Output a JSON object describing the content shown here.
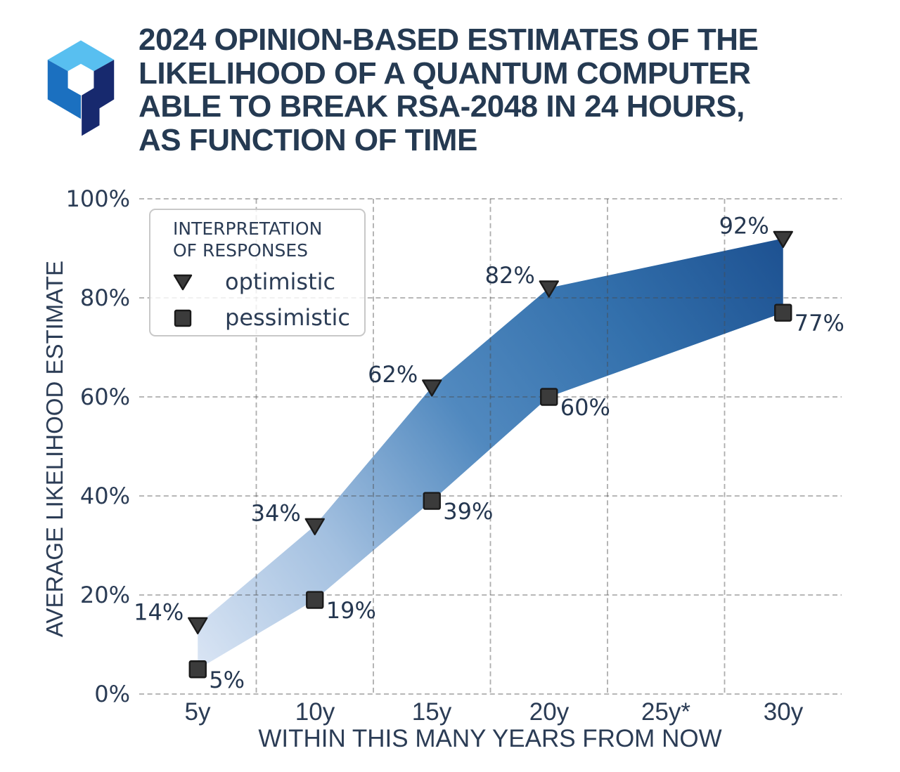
{
  "logo": {
    "name": "hexagon-q-logo",
    "colors": {
      "top": "#58bff0",
      "left": "#1b70c0",
      "right": "#17296e"
    }
  },
  "title": {
    "lines": [
      "2024 OPINION-BASED ESTIMATES OF THE",
      "LIKELIHOOD OF A QUANTUM COMPUTER",
      "ABLE TO BREAK RSA-2048 IN 24 HOURS,",
      "AS FUNCTION OF TIME"
    ]
  },
  "chart_data": {
    "type": "area",
    "subtype": "range-band-with-markers",
    "x": [
      5,
      10,
      15,
      20,
      30
    ],
    "x_unit": "years from now",
    "series": [
      {
        "name": "optimistic",
        "marker": "triangle-down",
        "values": [
          14,
          34,
          62,
          82,
          92
        ],
        "labels": [
          "14%",
          "34%",
          "62%",
          "82%",
          "92%"
        ],
        "label_side": "left"
      },
      {
        "name": "pessimistic",
        "marker": "square",
        "values": [
          5,
          19,
          39,
          60,
          77
        ],
        "labels": [
          "5%",
          "19%",
          "39%",
          "60%",
          "77%"
        ],
        "label_side": "right"
      }
    ],
    "xlabel": "WITHIN THIS MANY YEARS FROM NOW",
    "ylabel": "AVERAGE LIKELIHOOD ESTIMATE",
    "x_tick_labels": [
      "5y",
      "10y",
      "15y",
      "20y",
      "25y*",
      "30y"
    ],
    "x_tick_values": [
      5,
      10,
      15,
      20,
      25,
      30
    ],
    "x_grid_values": [
      7.5,
      12.5,
      17.5,
      22.5,
      27.5
    ],
    "y_tick_labels": [
      "0%",
      "20%",
      "40%",
      "60%",
      "80%",
      "100%"
    ],
    "y_tick_values": [
      0,
      20,
      40,
      60,
      80,
      100
    ],
    "xlim": [
      2.5,
      32.5
    ],
    "ylim": [
      0,
      100
    ],
    "grid": "dashed",
    "note": "no data point at 25y (asterisked tick)",
    "legend": {
      "title_lines": [
        "INTERPRETATION",
        "OF RESPONSES"
      ],
      "position": "upper left",
      "entries": [
        {
          "label": "optimistic",
          "marker": "triangle-down"
        },
        {
          "label": "pessimistic",
          "marker": "square"
        }
      ]
    },
    "band_gradient": {
      "direction": "bottom-left to top-right",
      "stops": [
        {
          "offset": 0.0,
          "color": "#dae5f4"
        },
        {
          "offset": 0.25,
          "color": "#a3c0e0"
        },
        {
          "offset": 0.5,
          "color": "#5189bf"
        },
        {
          "offset": 0.75,
          "color": "#3370ac"
        },
        {
          "offset": 1.0,
          "color": "#1d5191"
        }
      ]
    }
  },
  "colors": {
    "title_text": "#253a52",
    "tick_text": "#2b3c55",
    "point_label_text": "#253750",
    "marker_fill": "#3b3b3b",
    "marker_stroke": "#1a1a1a",
    "grid_stroke": "#4a4a4a",
    "legend_border": "#c8c8c8"
  }
}
